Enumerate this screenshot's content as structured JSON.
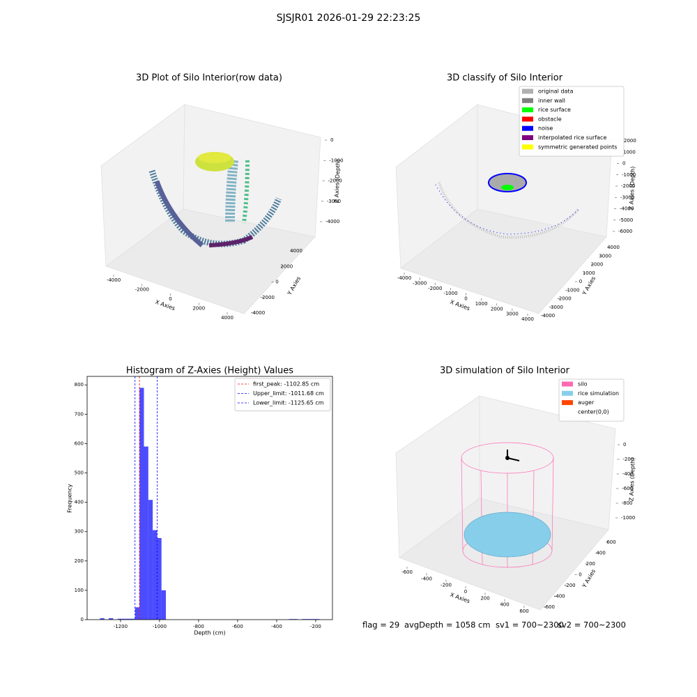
{
  "title": "SJSJR01 2026-01-29 22:23:25",
  "chart_data": [
    {
      "type": "scatter3d",
      "title": "3D Plot of Silo Interior(row data)",
      "x_label": "X Axies",
      "y_label": "Y Axies",
      "z_label": "Z Axies (Depth)",
      "xlim": [
        -4000,
        4000
      ],
      "xticks": [
        -4000,
        -2000,
        0,
        2000,
        4000
      ],
      "ylim": [
        -4000,
        4000
      ],
      "yticks": [
        -4000,
        -2000,
        0,
        2000,
        4000
      ],
      "zlim": [
        -4000,
        0
      ],
      "zticks": [
        0,
        -1000,
        -2000,
        -3000,
        -4000
      ]
    },
    {
      "type": "scatter3d",
      "title": "3D classify of Silo Interior",
      "x_label": "X Axies",
      "y_label": "Y Axies",
      "z_label": "Z Axies (Depth)",
      "xlim": [
        -4000,
        4000
      ],
      "xticks": [
        -4000,
        -3000,
        -2000,
        -1000,
        0,
        1000,
        2000,
        3000,
        4000
      ],
      "ylim": [
        -4000,
        4000
      ],
      "yticks": [
        -4000,
        -3000,
        -2000,
        -1000,
        0,
        1000,
        2000,
        3000,
        4000
      ],
      "zlim": [
        -6000,
        2000
      ],
      "zticks": [
        2000,
        1000,
        0,
        -1000,
        -2000,
        -3000,
        -4000,
        -5000,
        -6000
      ],
      "legend": "upper right",
      "series": [
        {
          "name": "original data",
          "color": "#b0b0b0"
        },
        {
          "name": "inner wall",
          "color": "#808080"
        },
        {
          "name": "rice surface",
          "color": "#00ff00"
        },
        {
          "name": "obstacle",
          "color": "#ff0000"
        },
        {
          "name": "noise",
          "color": "#0000ff"
        },
        {
          "name": "interpolated rice surface",
          "color": "#800080"
        },
        {
          "name": "symmetric generated points",
          "color": "#ffff00"
        }
      ]
    },
    {
      "type": "histogram",
      "title": "Histogram of Z-Axies (Height) Values",
      "x_label": "Depth (cm)",
      "y_label": "Frequency",
      "color": "#0000ff",
      "alpha": 0.7,
      "bins": [
        -1305,
        -1282.5,
        -1260,
        -1237.5,
        -1215,
        -1192.5,
        -1170,
        -1147.5,
        -1125,
        -1102.5,
        -1080,
        -1057.5,
        -1035,
        -1012.5,
        -990,
        -967.5,
        -945,
        -922.5,
        -900,
        -877.5,
        -855,
        -832.5,
        -810,
        -787.5,
        -765,
        -742.5,
        -720,
        -697.5,
        -675,
        -652.5,
        -630,
        -607.5,
        -585,
        -562.5,
        -540,
        -517.5,
        -495,
        -472.5,
        -450,
        -427.5,
        -405,
        -382.5,
        -360,
        -337.5,
        -315,
        -292.5,
        -270,
        -247.5,
        -225,
        -202.5,
        -180
      ],
      "counts": [
        5,
        1,
        5,
        0,
        3,
        3,
        3,
        3,
        42,
        790,
        590,
        408,
        305,
        278,
        100,
        0,
        0,
        0,
        0,
        0,
        0,
        0,
        0,
        0,
        0,
        0,
        0,
        0,
        0,
        0,
        0,
        0,
        0,
        0,
        0,
        0,
        0,
        0,
        0,
        0,
        0,
        0,
        0,
        2,
        2,
        0,
        2,
        2,
        2,
        2
      ],
      "xlim": [
        -1371,
        -114
      ],
      "xticks": [
        -1200,
        -1000,
        -800,
        -600,
        -400,
        -200
      ],
      "ylim": [
        0,
        829
      ],
      "yticks": [
        0,
        100,
        200,
        300,
        400,
        500,
        600,
        700,
        800
      ],
      "legend": "upper right",
      "lines": [
        {
          "name": "first_peak: -1102.85 cm",
          "value": -1102.85,
          "color": "#ff0000"
        },
        {
          "name": "Upper_limit: -1011.68 cm",
          "value": -1011.68,
          "color": "#0000ff"
        },
        {
          "name": "Lower_limit: -1125.65 cm",
          "value": -1125.65,
          "color": "#0000ff"
        }
      ]
    },
    {
      "type": "mesh3d",
      "title": "3D simulation of Silo Interior",
      "x_label": "X Axies",
      "y_label": "Y Axies",
      "z_label": "Z Axies (Depth)",
      "xlim": [
        -600,
        600
      ],
      "xticks": [
        -600,
        -400,
        -200,
        0,
        200,
        400,
        600
      ],
      "ylim": [
        -600,
        600
      ],
      "yticks": [
        -600,
        -400,
        -200,
        0,
        200,
        400,
        600
      ],
      "zlim": [
        -1000,
        0
      ],
      "zticks": [
        0,
        -200,
        -400,
        -600,
        -800,
        -1000
      ],
      "legend": "upper right",
      "series": [
        {
          "name": "silo",
          "color": "#ff69b4"
        },
        {
          "name": "rice simulation",
          "color": "#87ceeb"
        },
        {
          "name": "auger",
          "color": "#ff4500"
        },
        {
          "name": "center(0,0)",
          "color": null
        }
      ]
    }
  ],
  "footer": [
    "flag = 29",
    "avgDepth = 1058 cm",
    "sv1 = 700~2300",
    "sv2 = 700~2300"
  ]
}
